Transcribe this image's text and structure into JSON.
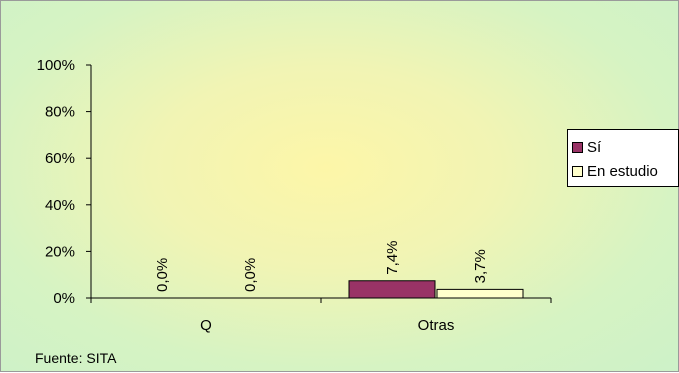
{
  "chart_data": {
    "type": "bar",
    "categories": [
      "Q",
      "Otras"
    ],
    "series": [
      {
        "name": "Sí",
        "values": [
          0.0,
          7.4
        ],
        "labels": [
          "0,0%",
          "7,4%"
        ],
        "color": "#993366"
      },
      {
        "name": "En estudio",
        "values": [
          0.0,
          3.7
        ],
        "labels": [
          "0,0%",
          "3,7%"
        ],
        "color": "#ffffcc"
      }
    ],
    "y_ticks": [
      "0%",
      "20%",
      "40%",
      "60%",
      "80%",
      "100%"
    ],
    "ylim": [
      0,
      100
    ],
    "legend_position": "right",
    "grid": false
  },
  "source_note": "Fuente: SITA"
}
